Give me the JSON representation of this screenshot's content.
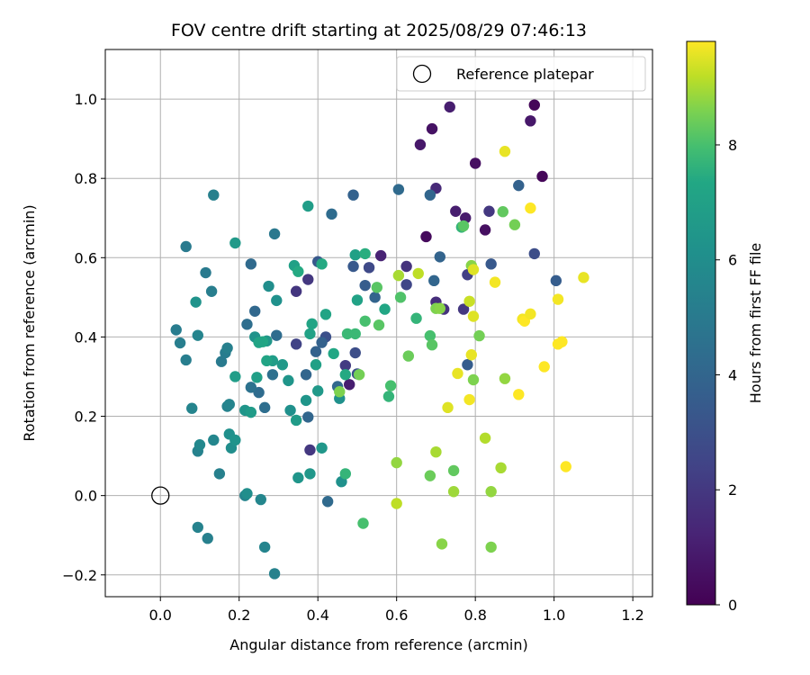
{
  "chart_data": {
    "type": "scatter",
    "title": "FOV centre drift starting at 2025/08/29 07:46:13",
    "xlabel": "Angular distance from reference (arcmin)",
    "ylabel": "Rotation from reference (arcmin)",
    "xlim": [
      -0.14,
      1.25
    ],
    "ylim": [
      -0.255,
      1.125
    ],
    "x_ticks": [
      0.0,
      0.2,
      0.4,
      0.6,
      0.8,
      1.0,
      1.2
    ],
    "x_tick_labels": [
      "0.0",
      "0.2",
      "0.4",
      "0.6",
      "0.8",
      "1.0",
      "1.2"
    ],
    "y_ticks": [
      -0.2,
      0.0,
      0.2,
      0.4,
      0.6,
      0.8,
      1.0
    ],
    "y_tick_labels": [
      "−0.2",
      "0.0",
      "0.2",
      "0.4",
      "0.6",
      "0.8",
      "1.0"
    ],
    "grid": true,
    "colormap": "viridis",
    "colorbar": {
      "label": "Hours from first FF file",
      "range": [
        0,
        9.8
      ],
      "ticks": [
        0,
        2,
        4,
        6,
        8
      ],
      "tick_labels": [
        "0",
        "2",
        "4",
        "6",
        "8"
      ]
    },
    "legend": {
      "placement": "top-right",
      "entries": [
        "Reference platepar"
      ]
    },
    "reference_point": {
      "x": 0.0,
      "y": 0.0,
      "label": "Reference platepar"
    },
    "points": [
      {
        "x": 0.95,
        "y": 0.985,
        "h": 0.2
      },
      {
        "x": 0.97,
        "y": 0.805,
        "h": 0.2
      },
      {
        "x": 0.94,
        "y": 0.945,
        "h": 0.8
      },
      {
        "x": 0.735,
        "y": 0.98,
        "h": 1.0
      },
      {
        "x": 0.69,
        "y": 0.925,
        "h": 0.6
      },
      {
        "x": 0.66,
        "y": 0.885,
        "h": 0.8
      },
      {
        "x": 0.8,
        "y": 0.838,
        "h": 0.5
      },
      {
        "x": 0.7,
        "y": 0.775,
        "h": 1.4
      },
      {
        "x": 0.75,
        "y": 0.717,
        "h": 1.0
      },
      {
        "x": 0.775,
        "y": 0.7,
        "h": 0.9
      },
      {
        "x": 0.825,
        "y": 0.67,
        "h": 0.5
      },
      {
        "x": 0.835,
        "y": 0.717,
        "h": 2.0
      },
      {
        "x": 0.675,
        "y": 0.653,
        "h": 0.3
      },
      {
        "x": 0.7,
        "y": 0.488,
        "h": 1.6
      },
      {
        "x": 0.77,
        "y": 0.47,
        "h": 2.0
      },
      {
        "x": 0.72,
        "y": 0.47,
        "h": 1.8
      },
      {
        "x": 0.56,
        "y": 0.605,
        "h": 1.2
      },
      {
        "x": 0.625,
        "y": 0.578,
        "h": 1.8
      },
      {
        "x": 0.345,
        "y": 0.515,
        "h": 1.9
      },
      {
        "x": 0.375,
        "y": 0.545,
        "h": 2.0
      },
      {
        "x": 0.48,
        "y": 0.28,
        "h": 1.0
      },
      {
        "x": 0.38,
        "y": 0.115,
        "h": 2.0
      },
      {
        "x": 0.345,
        "y": 0.382,
        "h": 2.4
      },
      {
        "x": 0.47,
        "y": 0.328,
        "h": 2.1
      },
      {
        "x": 0.53,
        "y": 0.575,
        "h": 2.7
      },
      {
        "x": 0.625,
        "y": 0.532,
        "h": 2.6
      },
      {
        "x": 0.95,
        "y": 0.61,
        "h": 2.9
      },
      {
        "x": 0.91,
        "y": 0.782,
        "h": 3.8
      },
      {
        "x": 1.005,
        "y": 0.542,
        "h": 3.6
      },
      {
        "x": 0.84,
        "y": 0.584,
        "h": 3.4
      },
      {
        "x": 0.78,
        "y": 0.557,
        "h": 2.3
      },
      {
        "x": 0.78,
        "y": 0.33,
        "h": 3.6
      },
      {
        "x": 0.685,
        "y": 0.758,
        "h": 4.0
      },
      {
        "x": 0.605,
        "y": 0.772,
        "h": 4.2
      },
      {
        "x": 0.435,
        "y": 0.71,
        "h": 4.3
      },
      {
        "x": 0.49,
        "y": 0.758,
        "h": 3.8
      },
      {
        "x": 0.4,
        "y": 0.59,
        "h": 3.4
      },
      {
        "x": 0.49,
        "y": 0.578,
        "h": 3.4
      },
      {
        "x": 0.5,
        "y": 0.307,
        "h": 3.0
      },
      {
        "x": 0.495,
        "y": 0.36,
        "h": 2.9
      },
      {
        "x": 0.42,
        "y": 0.4,
        "h": 3.0
      },
      {
        "x": 0.41,
        "y": 0.386,
        "h": 3.8
      },
      {
        "x": 0.395,
        "y": 0.363,
        "h": 3.8
      },
      {
        "x": 0.37,
        "y": 0.305,
        "h": 4.0
      },
      {
        "x": 0.375,
        "y": 0.198,
        "h": 4.0
      },
      {
        "x": 0.45,
        "y": 0.275,
        "h": 4.1
      },
      {
        "x": 0.425,
        "y": -0.015,
        "h": 4.2
      },
      {
        "x": 0.52,
        "y": 0.53,
        "h": 3.6
      },
      {
        "x": 0.545,
        "y": 0.5,
        "h": 3.9
      },
      {
        "x": 0.71,
        "y": 0.602,
        "h": 3.9
      },
      {
        "x": 0.695,
        "y": 0.542,
        "h": 4.0
      },
      {
        "x": 0.24,
        "y": 0.465,
        "h": 4.1
      },
      {
        "x": 0.23,
        "y": 0.584,
        "h": 4.2
      },
      {
        "x": 0.22,
        "y": 0.432,
        "h": 4.4
      },
      {
        "x": 0.295,
        "y": 0.404,
        "h": 4.3
      },
      {
        "x": 0.25,
        "y": 0.26,
        "h": 4.3
      },
      {
        "x": 0.265,
        "y": 0.222,
        "h": 4.4
      },
      {
        "x": 0.285,
        "y": 0.305,
        "h": 4.5
      },
      {
        "x": 0.23,
        "y": 0.273,
        "h": 4.6
      },
      {
        "x": 0.29,
        "y": 0.66,
        "h": 4.9
      },
      {
        "x": 0.135,
        "y": 0.758,
        "h": 5.3
      },
      {
        "x": 0.065,
        "y": 0.628,
        "h": 5.0
      },
      {
        "x": 0.115,
        "y": 0.562,
        "h": 5.0
      },
      {
        "x": 0.13,
        "y": 0.515,
        "h": 5.2
      },
      {
        "x": 0.04,
        "y": 0.418,
        "h": 5.1
      },
      {
        "x": 0.05,
        "y": 0.385,
        "h": 5.2
      },
      {
        "x": 0.065,
        "y": 0.342,
        "h": 5.2
      },
      {
        "x": 0.095,
        "y": 0.404,
        "h": 5.5
      },
      {
        "x": 0.155,
        "y": 0.338,
        "h": 5.0
      },
      {
        "x": 0.165,
        "y": 0.36,
        "h": 5.1
      },
      {
        "x": 0.17,
        "y": 0.372,
        "h": 5.3
      },
      {
        "x": 0.08,
        "y": 0.22,
        "h": 5.5
      },
      {
        "x": 0.17,
        "y": 0.225,
        "h": 5.4
      },
      {
        "x": 0.175,
        "y": 0.23,
        "h": 5.5
      },
      {
        "x": 0.095,
        "y": 0.112,
        "h": 5.4
      },
      {
        "x": 0.1,
        "y": 0.128,
        "h": 5.7
      },
      {
        "x": 0.135,
        "y": 0.14,
        "h": 5.6
      },
      {
        "x": 0.15,
        "y": 0.055,
        "h": 5.3
      },
      {
        "x": 0.095,
        "y": -0.08,
        "h": 5.4
      },
      {
        "x": 0.12,
        "y": -0.108,
        "h": 5.3
      },
      {
        "x": 0.215,
        "y": 0.0,
        "h": 5.5
      },
      {
        "x": 0.255,
        "y": -0.01,
        "h": 5.6
      },
      {
        "x": 0.265,
        "y": -0.13,
        "h": 5.5
      },
      {
        "x": 0.29,
        "y": -0.197,
        "h": 5.4
      },
      {
        "x": 0.09,
        "y": 0.488,
        "h": 6.3
      },
      {
        "x": 0.19,
        "y": 0.637,
        "h": 6.6
      },
      {
        "x": 0.275,
        "y": 0.528,
        "h": 6.0
      },
      {
        "x": 0.295,
        "y": 0.492,
        "h": 6.2
      },
      {
        "x": 0.24,
        "y": 0.4,
        "h": 6.3
      },
      {
        "x": 0.27,
        "y": 0.39,
        "h": 6.5
      },
      {
        "x": 0.31,
        "y": 0.33,
        "h": 6.6
      },
      {
        "x": 0.325,
        "y": 0.29,
        "h": 6.4
      },
      {
        "x": 0.285,
        "y": 0.34,
        "h": 6.8
      },
      {
        "x": 0.19,
        "y": 0.3,
        "h": 6.8
      },
      {
        "x": 0.245,
        "y": 0.298,
        "h": 6.9
      },
      {
        "x": 0.215,
        "y": 0.215,
        "h": 6.4
      },
      {
        "x": 0.23,
        "y": 0.21,
        "h": 6.7
      },
      {
        "x": 0.175,
        "y": 0.155,
        "h": 6.1
      },
      {
        "x": 0.18,
        "y": 0.12,
        "h": 6.0
      },
      {
        "x": 0.19,
        "y": 0.14,
        "h": 6.3
      },
      {
        "x": 0.22,
        "y": 0.005,
        "h": 6.0
      },
      {
        "x": 0.33,
        "y": 0.215,
        "h": 6.1
      },
      {
        "x": 0.35,
        "y": 0.045,
        "h": 6.4
      },
      {
        "x": 0.38,
        "y": 0.055,
        "h": 6.5
      },
      {
        "x": 0.41,
        "y": 0.12,
        "h": 6.5
      },
      {
        "x": 0.46,
        "y": 0.035,
        "h": 6.2
      },
      {
        "x": 0.455,
        "y": 0.245,
        "h": 6.2
      },
      {
        "x": 0.37,
        "y": 0.24,
        "h": 6.4
      },
      {
        "x": 0.345,
        "y": 0.19,
        "h": 6.7
      },
      {
        "x": 0.4,
        "y": 0.264,
        "h": 6.6
      },
      {
        "x": 0.395,
        "y": 0.33,
        "h": 7.0
      },
      {
        "x": 0.375,
        "y": 0.73,
        "h": 6.8
      },
      {
        "x": 0.34,
        "y": 0.58,
        "h": 7.0
      },
      {
        "x": 0.35,
        "y": 0.565,
        "h": 7.4
      },
      {
        "x": 0.41,
        "y": 0.584,
        "h": 7.4
      },
      {
        "x": 0.27,
        "y": 0.34,
        "h": 7.2
      },
      {
        "x": 0.26,
        "y": 0.388,
        "h": 7.3
      },
      {
        "x": 0.25,
        "y": 0.386,
        "h": 7.2
      },
      {
        "x": 0.38,
        "y": 0.408,
        "h": 7.1
      },
      {
        "x": 0.385,
        "y": 0.433,
        "h": 7.2
      },
      {
        "x": 0.42,
        "y": 0.457,
        "h": 7.2
      },
      {
        "x": 0.44,
        "y": 0.358,
        "h": 7.3
      },
      {
        "x": 0.47,
        "y": 0.305,
        "h": 7.4
      },
      {
        "x": 0.47,
        "y": 0.055,
        "h": 7.7
      },
      {
        "x": 0.515,
        "y": -0.07,
        "h": 8.0
      },
      {
        "x": 0.455,
        "y": 0.262,
        "h": 8.6
      },
      {
        "x": 0.475,
        "y": 0.408,
        "h": 7.8
      },
      {
        "x": 0.495,
        "y": 0.408,
        "h": 7.8
      },
      {
        "x": 0.5,
        "y": 0.493,
        "h": 7.1
      },
      {
        "x": 0.495,
        "y": 0.607,
        "h": 7.0
      },
      {
        "x": 0.52,
        "y": 0.61,
        "h": 7.5
      },
      {
        "x": 0.52,
        "y": 0.44,
        "h": 8.0
      },
      {
        "x": 0.555,
        "y": 0.43,
        "h": 8.2
      },
      {
        "x": 0.57,
        "y": 0.47,
        "h": 7.3
      },
      {
        "x": 0.55,
        "y": 0.525,
        "h": 8.2
      },
      {
        "x": 0.505,
        "y": 0.305,
        "h": 8.5
      },
      {
        "x": 0.58,
        "y": 0.25,
        "h": 7.7
      },
      {
        "x": 0.585,
        "y": 0.277,
        "h": 8.0
      },
      {
        "x": 0.61,
        "y": 0.5,
        "h": 8.1
      },
      {
        "x": 0.65,
        "y": 0.447,
        "h": 7.7
      },
      {
        "x": 0.685,
        "y": 0.403,
        "h": 8.0
      },
      {
        "x": 0.69,
        "y": 0.38,
        "h": 8.2
      },
      {
        "x": 0.63,
        "y": 0.352,
        "h": 8.4
      },
      {
        "x": 0.7,
        "y": 0.472,
        "h": 8.6
      },
      {
        "x": 0.71,
        "y": 0.472,
        "h": 8.7
      },
      {
        "x": 0.765,
        "y": 0.677,
        "h": 7.7
      },
      {
        "x": 0.77,
        "y": 0.68,
        "h": 8.2
      },
      {
        "x": 0.87,
        "y": 0.716,
        "h": 8.3
      },
      {
        "x": 0.9,
        "y": 0.683,
        "h": 8.5
      },
      {
        "x": 0.79,
        "y": 0.58,
        "h": 8.7
      },
      {
        "x": 0.81,
        "y": 0.403,
        "h": 8.5
      },
      {
        "x": 0.795,
        "y": 0.292,
        "h": 8.6
      },
      {
        "x": 0.875,
        "y": 0.295,
        "h": 8.8
      },
      {
        "x": 0.6,
        "y": 0.083,
        "h": 8.8
      },
      {
        "x": 0.685,
        "y": 0.05,
        "h": 8.4
      },
      {
        "x": 0.745,
        "y": 0.063,
        "h": 8.3
      },
      {
        "x": 0.745,
        "y": 0.01,
        "h": 8.9
      },
      {
        "x": 0.715,
        "y": -0.122,
        "h": 8.7
      },
      {
        "x": 0.84,
        "y": 0.01,
        "h": 8.8
      },
      {
        "x": 0.84,
        "y": -0.13,
        "h": 8.6
      },
      {
        "x": 0.865,
        "y": 0.07,
        "h": 9.0
      },
      {
        "x": 0.825,
        "y": 0.145,
        "h": 9.1
      },
      {
        "x": 0.7,
        "y": 0.11,
        "h": 9.0
      },
      {
        "x": 0.6,
        "y": -0.02,
        "h": 9.2
      },
      {
        "x": 0.605,
        "y": 0.555,
        "h": 9.0
      },
      {
        "x": 0.655,
        "y": 0.56,
        "h": 9.2
      },
      {
        "x": 0.795,
        "y": 0.57,
        "h": 9.5
      },
      {
        "x": 0.85,
        "y": 0.538,
        "h": 9.7
      },
      {
        "x": 0.785,
        "y": 0.49,
        "h": 9.3
      },
      {
        "x": 0.795,
        "y": 0.452,
        "h": 9.5
      },
      {
        "x": 0.79,
        "y": 0.355,
        "h": 9.6
      },
      {
        "x": 0.755,
        "y": 0.308,
        "h": 9.6
      },
      {
        "x": 0.785,
        "y": 0.242,
        "h": 9.7
      },
      {
        "x": 0.73,
        "y": 0.222,
        "h": 9.5
      },
      {
        "x": 0.875,
        "y": 0.868,
        "h": 9.6
      },
      {
        "x": 0.94,
        "y": 0.725,
        "h": 9.8
      },
      {
        "x": 0.92,
        "y": 0.445,
        "h": 9.7
      },
      {
        "x": 0.925,
        "y": 0.44,
        "h": 9.8
      },
      {
        "x": 0.94,
        "y": 0.458,
        "h": 9.7
      },
      {
        "x": 0.91,
        "y": 0.255,
        "h": 9.8
      },
      {
        "x": 0.975,
        "y": 0.325,
        "h": 9.8
      },
      {
        "x": 1.01,
        "y": 0.495,
        "h": 9.7
      },
      {
        "x": 1.01,
        "y": 0.382,
        "h": 9.8
      },
      {
        "x": 1.02,
        "y": 0.388,
        "h": 9.8
      },
      {
        "x": 1.03,
        "y": 0.073,
        "h": 9.8
      },
      {
        "x": 1.075,
        "y": 0.55,
        "h": 9.6
      }
    ]
  }
}
